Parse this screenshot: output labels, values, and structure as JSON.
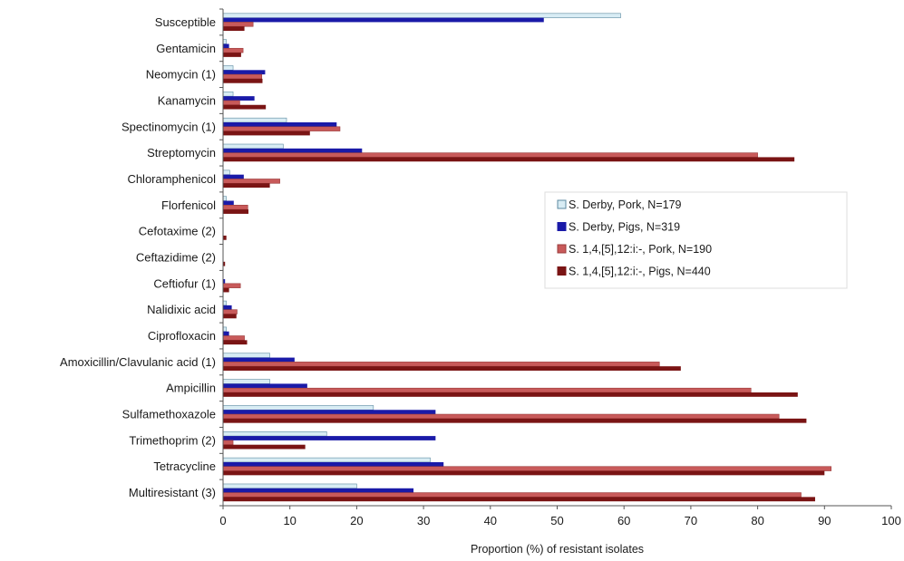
{
  "chart_data": {
    "type": "bar",
    "orientation": "horizontal",
    "categories": [
      "Susceptible",
      "Gentamicin",
      "Neomycin (1)",
      "Kanamycin",
      "Spectinomycin (1)",
      "Streptomycin",
      "Chloramphenicol",
      "Florfenicol",
      "Cefotaxime (2)",
      "Ceftazidime (2)",
      "Ceftiofur (1)",
      "Nalidixic acid",
      "Ciprofloxacin",
      "Amoxicillin/Clavulanic acid (1)",
      "Ampicillin",
      "Sulfamethoxazole",
      "Trimethoprim (2)",
      "Tetracycline",
      "Multiresistant (3)"
    ],
    "series": [
      {
        "name": "S. Derby, Pork, N=179",
        "color": "#d8ecf4",
        "values": [
          59.5,
          0.5,
          1.5,
          1.5,
          9.5,
          9,
          1,
          0.5,
          0,
          0,
          0,
          0.5,
          0.5,
          7,
          7,
          22.5,
          15.5,
          31,
          20
        ]
      },
      {
        "name": "S. Derby, Pigs, N=319",
        "color": "#1a1aa8",
        "values": [
          48,
          0.9,
          6.3,
          4.7,
          17,
          20.8,
          3.1,
          1.6,
          0,
          0,
          0.3,
          1.3,
          0.9,
          10.7,
          12.6,
          31.8,
          31.8,
          33,
          28.5
        ]
      },
      {
        "name": "S. 1,4,[5],12:i:-, Pork, N=190",
        "color": "#c85a5a",
        "values": [
          4.5,
          3,
          5.8,
          2.5,
          17.5,
          80,
          8.5,
          3.7,
          0,
          0,
          2.6,
          2.1,
          3.2,
          65.3,
          79,
          83.2,
          1.5,
          91,
          86.5
        ]
      },
      {
        "name": "S. 1,4,[5],12:i:-, Pigs, N=440",
        "color": "#7a1414",
        "values": [
          3.2,
          2.7,
          5.9,
          6.4,
          13,
          85.5,
          7,
          3.8,
          0.5,
          0.3,
          0.9,
          2,
          3.6,
          68.5,
          86,
          87.3,
          12.3,
          90,
          88.6
        ]
      }
    ],
    "xlabel": "Proportion (%) of resistant isolates",
    "ylabel": "",
    "xlim": [
      0,
      100
    ],
    "x_ticks": [
      "0",
      "10",
      "20",
      "30",
      "40",
      "50",
      "60",
      "70",
      "80",
      "90",
      "100"
    ],
    "grid": false,
    "legend_position": "center-right"
  }
}
